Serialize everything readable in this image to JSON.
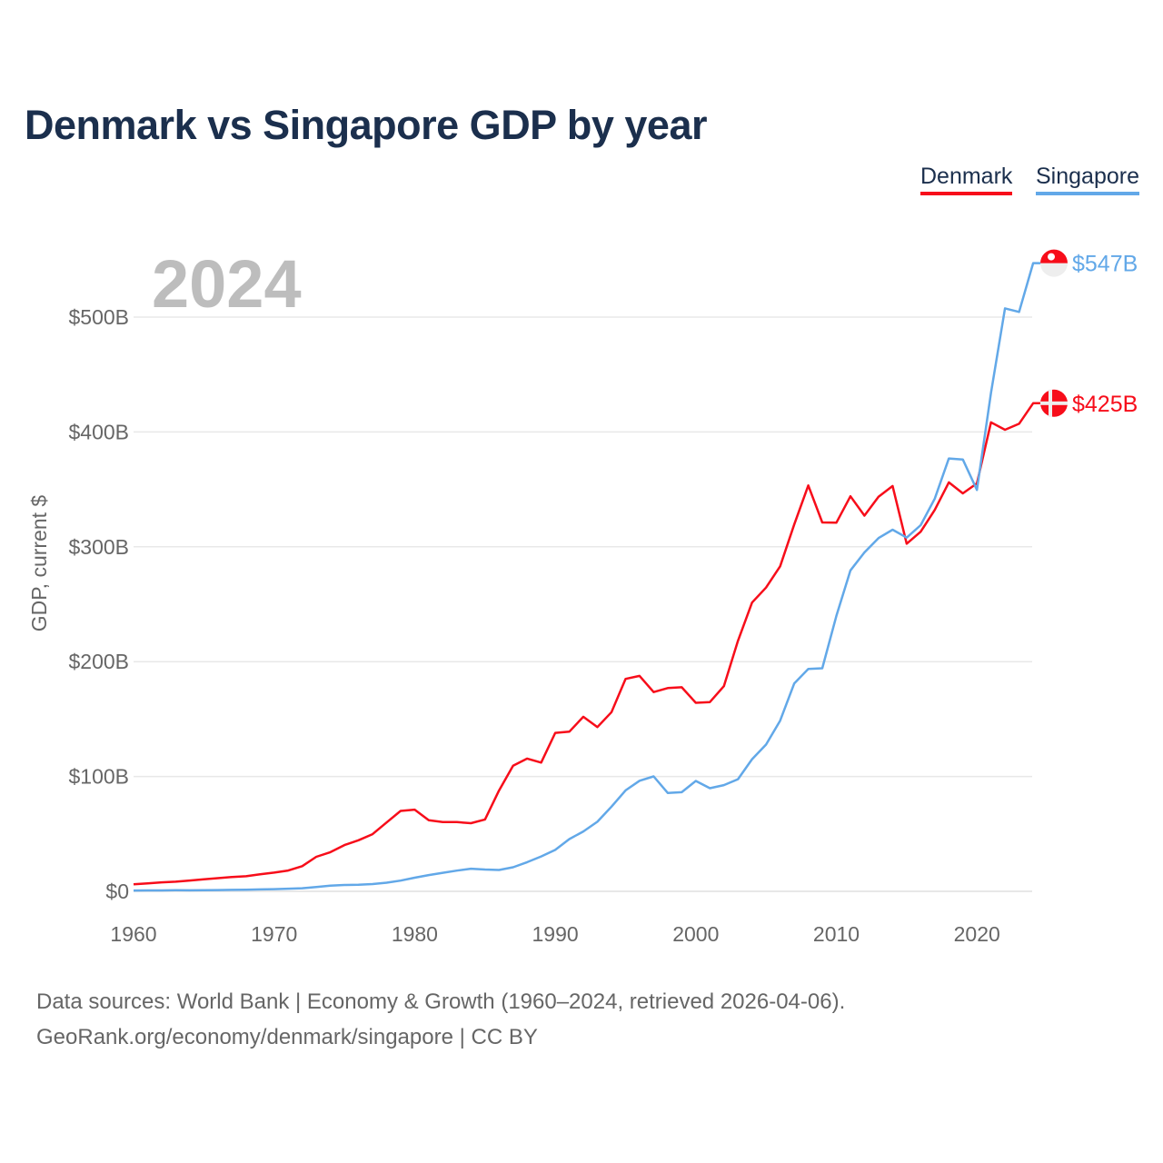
{
  "title": "Denmark vs Singapore GDP by year",
  "footer": {
    "line1": "Data sources: World Bank | Economy & Growth (1960–2024, retrieved 2026-04-06).",
    "line2": "GeoRank.org/economy/denmark/singapore | CC BY"
  },
  "chart_data": {
    "type": "line",
    "title": "Denmark vs Singapore GDP by year",
    "year_label": "2024",
    "xlabel": "",
    "ylabel": "GDP, current $",
    "xlim": [
      1960,
      2024
    ],
    "ylim": [
      0,
      560
    ],
    "x_ticks": [
      1960,
      1970,
      1980,
      1990,
      2000,
      2010,
      2020
    ],
    "x_tick_labels": [
      "1960",
      "1970",
      "1980",
      "1990",
      "2000",
      "2010",
      "2020"
    ],
    "y_ticks": [
      0,
      100,
      200,
      300,
      400,
      500
    ],
    "y_tick_labels": [
      "$0",
      "$100B",
      "$200B",
      "$300B",
      "$400B",
      "$500B"
    ],
    "grid": true,
    "legend_position": "top-right",
    "x_start": 1960,
    "series": [
      {
        "name": "Denmark",
        "color": "#f70d1a",
        "flag": "denmark-flag",
        "end_label": "$425B",
        "values": [
          6.2,
          7.0,
          7.8,
          8.4,
          9.4,
          10.5,
          11.5,
          12.5,
          13.1,
          14.8,
          16.3,
          18.1,
          21.9,
          30.1,
          34.1,
          40.3,
          44.5,
          49.8,
          60.0,
          70.0,
          71.1,
          61.9,
          60.4,
          60.3,
          59.3,
          62.6,
          87.7,
          109.4,
          115.6,
          112.1,
          138.0,
          139.0,
          152.0,
          143.0,
          156.0,
          185.0,
          187.6,
          173.5,
          177.0,
          177.7,
          164.2,
          164.8,
          178.6,
          218.1,
          251.4,
          264.5,
          283.0,
          319.4,
          353.4,
          321.2,
          321.0,
          344.0,
          327.1,
          343.6,
          352.9,
          302.7,
          313.1,
          332.1,
          356.1,
          346.5,
          355.2,
          408.4,
          401.9,
          407.1,
          425
        ]
      },
      {
        "name": "Singapore",
        "color": "#62a8e8",
        "flag": "singapore-flag",
        "end_label": "$547B",
        "values": [
          0.7,
          0.76,
          0.82,
          0.92,
          0.89,
          0.97,
          1.08,
          1.24,
          1.42,
          1.66,
          1.92,
          2.26,
          2.72,
          3.69,
          4.9,
          5.5,
          5.7,
          6.3,
          7.5,
          9.3,
          11.9,
          14.2,
          16.1,
          18.0,
          19.7,
          19.0,
          18.6,
          21.0,
          25.4,
          30.4,
          36.1,
          45.5,
          52.1,
          60.6,
          73.7,
          87.9,
          96.3,
          100.1,
          85.7,
          86.3,
          96.1,
          89.8,
          92.5,
          97.6,
          115.0,
          127.8,
          148.6,
          180.9,
          193.6,
          194.2,
          239.8,
          279.4,
          295.1,
          307.6,
          314.9,
          308.0,
          318.8,
          341.9,
          376.9,
          376.0,
          349.5,
          434.1,
          507.6,
          504.5,
          547
        ]
      }
    ]
  }
}
